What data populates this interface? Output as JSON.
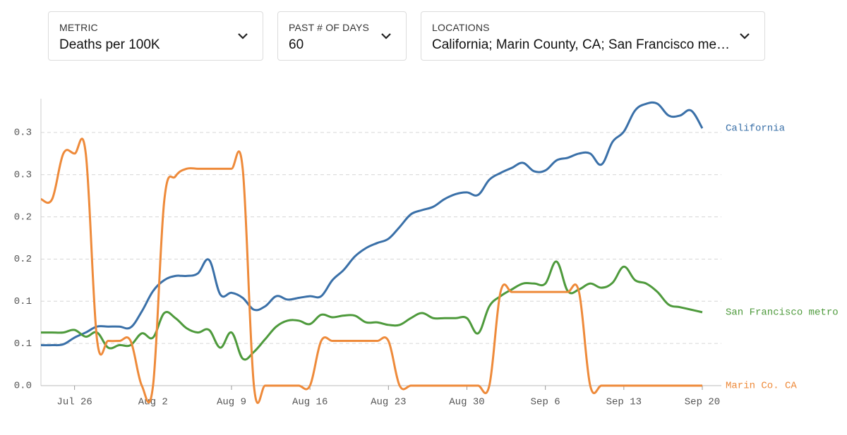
{
  "controls": [
    {
      "label": "METRIC",
      "value": "Deaths per 100K"
    },
    {
      "label": "PAST # OF DAYS",
      "value": "60"
    },
    {
      "label": "LOCATIONS",
      "value": "California; Marin County, CA; San Francisco metro"
    }
  ],
  "chart_data": {
    "type": "line",
    "x": [
      "Jul 23",
      "Jul 24",
      "Jul 25",
      "Jul 26",
      "Jul 27",
      "Jul 28",
      "Jul 29",
      "Jul 30",
      "Jul 31",
      "Aug 1",
      "Aug 2",
      "Aug 3",
      "Aug 4",
      "Aug 5",
      "Aug 6",
      "Aug 7",
      "Aug 8",
      "Aug 9",
      "Aug 10",
      "Aug 11",
      "Aug 12",
      "Aug 13",
      "Aug 14",
      "Aug 15",
      "Aug 16",
      "Aug 17",
      "Aug 18",
      "Aug 19",
      "Aug 20",
      "Aug 21",
      "Aug 22",
      "Aug 23",
      "Aug 24",
      "Aug 25",
      "Aug 26",
      "Aug 27",
      "Aug 28",
      "Aug 29",
      "Aug 30",
      "Aug 31",
      "Sep 1",
      "Sep 2",
      "Sep 3",
      "Sep 4",
      "Sep 5",
      "Sep 6",
      "Sep 7",
      "Sep 8",
      "Sep 9",
      "Sep 10",
      "Sep 11",
      "Sep 12",
      "Sep 13",
      "Sep 14",
      "Sep 15",
      "Sep 16",
      "Sep 17",
      "Sep 18",
      "Sep 19",
      "Sep 20"
    ],
    "xticks": [
      "Jul 26",
      "Aug 2",
      "Aug 9",
      "Aug 16",
      "Aug 23",
      "Aug 30",
      "Sep 6",
      "Sep 13",
      "Sep 20"
    ],
    "ylim": [
      0,
      0.34
    ],
    "yticks": [
      {
        "value": 0,
        "label": "0.0"
      },
      {
        "value": 0.05,
        "label": "0.1"
      },
      {
        "value": 0.1,
        "label": "0.1"
      },
      {
        "value": 0.15,
        "label": "0.2"
      },
      {
        "value": 0.2,
        "label": "0.2"
      },
      {
        "value": 0.25,
        "label": "0.3"
      },
      {
        "value": 0.3,
        "label": "0.3"
      }
    ],
    "grid": true,
    "series": [
      {
        "name": "California",
        "color": "#3a70a8",
        "values": [
          0.048,
          0.048,
          0.049,
          0.057,
          0.063,
          0.07,
          0.07,
          0.07,
          0.069,
          0.088,
          0.112,
          0.125,
          0.13,
          0.13,
          0.133,
          0.149,
          0.108,
          0.11,
          0.104,
          0.09,
          0.094,
          0.106,
          0.102,
          0.104,
          0.106,
          0.106,
          0.125,
          0.137,
          0.153,
          0.163,
          0.169,
          0.174,
          0.188,
          0.203,
          0.208,
          0.212,
          0.221,
          0.227,
          0.229,
          0.226,
          0.244,
          0.252,
          0.258,
          0.264,
          0.254,
          0.255,
          0.267,
          0.27,
          0.275,
          0.275,
          0.262,
          0.289,
          0.301,
          0.326,
          0.334,
          0.334,
          0.32,
          0.32,
          0.326,
          0.305
        ]
      },
      {
        "name": "San Francisco metro",
        "color": "#4e9a3c",
        "values": [
          0.063,
          0.063,
          0.063,
          0.066,
          0.058,
          0.063,
          0.045,
          0.048,
          0.048,
          0.062,
          0.057,
          0.086,
          0.08,
          0.068,
          0.063,
          0.066,
          0.045,
          0.063,
          0.032,
          0.04,
          0.055,
          0.07,
          0.077,
          0.077,
          0.073,
          0.084,
          0.081,
          0.083,
          0.083,
          0.075,
          0.075,
          0.072,
          0.072,
          0.08,
          0.086,
          0.08,
          0.08,
          0.08,
          0.08,
          0.062,
          0.094,
          0.106,
          0.114,
          0.121,
          0.121,
          0.121,
          0.147,
          0.112,
          0.114,
          0.121,
          0.116,
          0.122,
          0.141,
          0.125,
          0.121,
          0.111,
          0.096,
          0.093,
          0.09,
          0.087
        ]
      },
      {
        "name": "Marin Co. CA",
        "color": "#ee8a3a",
        "values": [
          0.221,
          0.221,
          0.275,
          0.275,
          0.275,
          0.055,
          0.053,
          0.053,
          0.053,
          0,
          0,
          0.219,
          0.248,
          0.257,
          0.257,
          0.257,
          0.257,
          0.257,
          0.257,
          0,
          0,
          0,
          0,
          0,
          0,
          0.053,
          0.053,
          0.053,
          0.053,
          0.053,
          0.053,
          0.053,
          0,
          0,
          0,
          0,
          0,
          0,
          0,
          0,
          0,
          0.111,
          0.111,
          0.111,
          0.111,
          0.111,
          0.111,
          0.111,
          0.111,
          0,
          0,
          0,
          0,
          0,
          0,
          0,
          0,
          0,
          0,
          0
        ]
      }
    ]
  }
}
